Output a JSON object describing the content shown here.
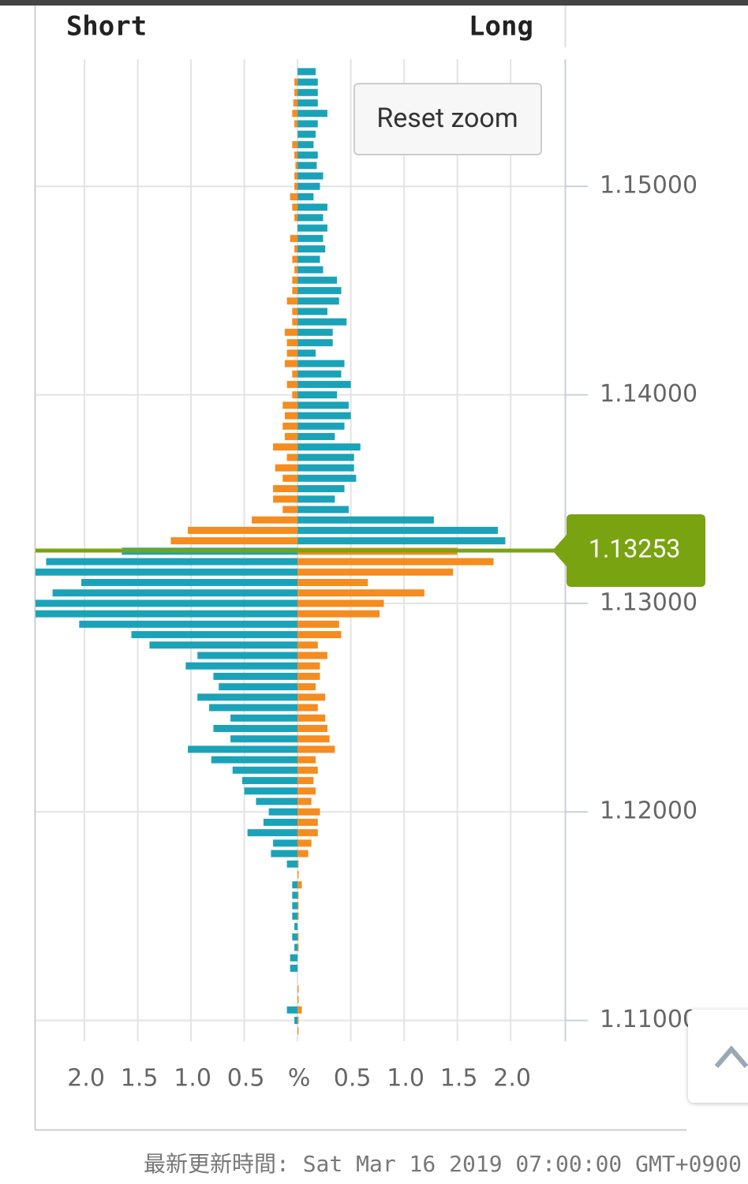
{
  "chart_data": {
    "type": "bar",
    "short_label": "Short",
    "long_label": "Long",
    "reset_zoom_label": "Reset zoom",
    "footer": "最新更新時間: Sat Mar 16 2019 07:00:00 GMT+0900",
    "current_price": 1.13253,
    "current_price_color": "#7aa312",
    "y": [
      1.1555,
      1.155,
      1.1545,
      1.154,
      1.1535,
      1.153,
      1.1525,
      1.152,
      1.1515,
      1.151,
      1.1505,
      1.15,
      1.1495,
      1.149,
      1.1485,
      1.148,
      1.1475,
      1.147,
      1.1465,
      1.146,
      1.1455,
      1.145,
      1.1445,
      1.144,
      1.1435,
      1.143,
      1.1425,
      1.142,
      1.1415,
      1.141,
      1.1405,
      1.14,
      1.1395,
      1.139,
      1.1385,
      1.138,
      1.1375,
      1.137,
      1.1365,
      1.136,
      1.1355,
      1.135,
      1.1345,
      1.134,
      1.1335,
      1.133,
      1.1325,
      1.132,
      1.1315,
      1.131,
      1.1305,
      1.13,
      1.1295,
      1.129,
      1.1285,
      1.128,
      1.1275,
      1.127,
      1.1265,
      1.126,
      1.1255,
      1.125,
      1.1245,
      1.124,
      1.1235,
      1.123,
      1.1225,
      1.122,
      1.1215,
      1.121,
      1.1205,
      1.12,
      1.1195,
      1.119,
      1.1185,
      1.118,
      1.1175,
      1.117,
      1.1165,
      1.116,
      1.1155,
      1.115,
      1.1145,
      1.114,
      1.1135,
      1.113,
      1.1125,
      1.112,
      1.1115,
      1.111,
      1.1105,
      1.11,
      1.1095
    ],
    "series": [
      {
        "color": "#1aa3b8",
        "values": [
          0.17,
          0.19,
          0.19,
          0.19,
          0.28,
          0.19,
          0.17,
          0.15,
          0.19,
          0.18,
          0.24,
          0.21,
          0.15,
          0.28,
          0.24,
          0.28,
          0.24,
          0.26,
          0.21,
          0.24,
          0.37,
          0.41,
          0.39,
          0.28,
          0.46,
          0.33,
          0.33,
          0.17,
          0.44,
          0.41,
          0.5,
          0.37,
          0.48,
          0.5,
          0.44,
          0.35,
          0.59,
          0.53,
          0.53,
          0.55,
          0.44,
          0.35,
          0.48,
          1.28,
          1.88,
          1.95,
          -1.65,
          -2.36,
          -2.46,
          -2.03,
          -2.3,
          -2.46,
          -2.46,
          -2.05,
          -1.56,
          -1.39,
          -0.94,
          -1.05,
          -0.79,
          -0.74,
          -0.94,
          -0.83,
          -0.63,
          -0.79,
          -0.63,
          -1.03,
          -0.81,
          -0.61,
          -0.52,
          -0.5,
          -0.39,
          -0.27,
          -0.32,
          -0.47,
          -0.23,
          -0.25,
          -0.1,
          0,
          -0.05,
          -0.05,
          -0.05,
          -0.05,
          -0.03,
          -0.05,
          -0.03,
          -0.07,
          -0.07,
          0,
          0,
          0,
          -0.1,
          -0.03,
          0
        ]
      },
      {
        "color": "#f58c1f",
        "values": [
          0,
          -0.03,
          -0.03,
          -0.04,
          -0.05,
          -0.03,
          0,
          -0.05,
          -0.03,
          -0.02,
          -0.03,
          -0.03,
          -0.07,
          -0.05,
          -0.03,
          0,
          -0.07,
          -0.03,
          -0.05,
          -0.03,
          -0.05,
          -0.05,
          -0.1,
          -0.05,
          -0.05,
          -0.12,
          -0.1,
          -0.1,
          -0.12,
          -0.05,
          -0.1,
          -0.05,
          -0.14,
          -0.12,
          -0.14,
          -0.12,
          -0.23,
          -0.1,
          -0.21,
          -0.14,
          -0.23,
          -0.23,
          -0.14,
          -0.43,
          -1.03,
          -1.19,
          1.5,
          1.84,
          1.46,
          0.66,
          1.19,
          0.81,
          0.77,
          0.39,
          0.41,
          0.19,
          0.28,
          0.21,
          0.21,
          0.17,
          0.26,
          0.19,
          0.26,
          0.28,
          0.3,
          0.35,
          0.17,
          0.19,
          0.15,
          0.17,
          0.13,
          0.21,
          0.19,
          0.19,
          0.13,
          0.1,
          0.01,
          0.01,
          0.04,
          0.01,
          0.01,
          0.01,
          0,
          0.01,
          0.01,
          0,
          0,
          0,
          0.01,
          0.01,
          0.04,
          0.01,
          0.01
        ]
      }
    ],
    "xlim": [
      -2.46,
      2.51
    ],
    "xticks": [
      {
        "value": -2,
        "label": "2.0"
      },
      {
        "value": -1.5,
        "label": "1.5"
      },
      {
        "value": -1,
        "label": "1.0"
      },
      {
        "value": -0.5,
        "label": "0.5"
      },
      {
        "value": 0,
        "label": "%"
      },
      {
        "value": 0.5,
        "label": "0.5"
      },
      {
        "value": 1,
        "label": "1.0"
      },
      {
        "value": 1.5,
        "label": "1.5"
      },
      {
        "value": 2,
        "label": "2.0"
      }
    ],
    "ylim": [
      1.109,
      1.1561
    ],
    "yticks": [
      {
        "value": 1.11,
        "label": "1.11000"
      },
      {
        "value": 1.12,
        "label": "1.12000"
      },
      {
        "value": 1.13,
        "label": "1.13000"
      },
      {
        "value": 1.14,
        "label": "1.14000"
      },
      {
        "value": 1.15,
        "label": "1.15000"
      }
    ],
    "grid": true
  }
}
